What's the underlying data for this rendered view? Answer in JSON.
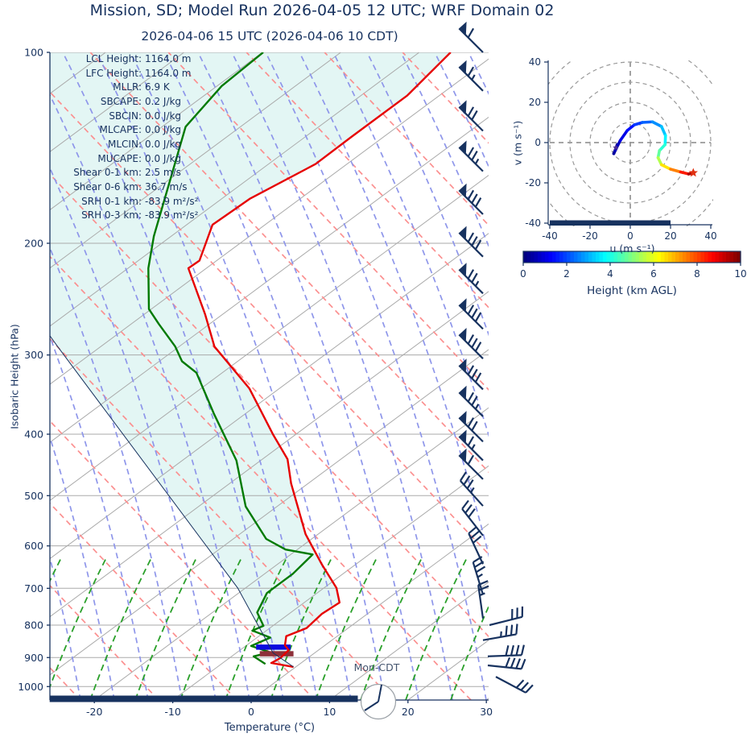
{
  "title": "Mission, SD; Model Run 2026-04-05 12 UTC; WRF Domain 02",
  "subtitle": "2026-04-06 15 UTC  (2026-04-06 10 CDT)",
  "colors": {
    "navy": "#17325f",
    "temperature_line": "#e60000",
    "dewpoint_line": "#007a00",
    "shade_fill": "#e3f6f4",
    "dry_adiabat": "#fb8f8f",
    "moist_adiabat": "#8e96ea",
    "mixing_ratio": "#2aa02a",
    "grid_gray": "#aaaaaa",
    "blue_marker_bar": "#0a0adf",
    "maroon_marker_bar": "#8e3039",
    "hodo_grid": "#999999",
    "clock_border": "#9aa0a6"
  },
  "skewt": {
    "ylabel": "Isobaric Height (hPa)",
    "xlabel": "Temperature (°C)",
    "surface_label": "Mon-CDT",
    "pressure_ticks": [
      100,
      200,
      300,
      400,
      500,
      600,
      700,
      800,
      900,
      1000
    ],
    "temp_ticks": [
      -20,
      -10,
      0,
      10,
      20,
      30
    ],
    "stats": [
      {
        "label": "LCL Height",
        "value": "1164.0 m"
      },
      {
        "label": "LFC Height",
        "value": "1164.0 m"
      },
      {
        "label": "MLLR",
        "value": "6.9 K"
      },
      {
        "label": "SBCAPE",
        "value": "0.2 J/kg"
      },
      {
        "label": "SBCIN",
        "value": "0.0 J/kg"
      },
      {
        "label": "MLCAPE",
        "value": "0.0 J/kg"
      },
      {
        "label": "MLCIN",
        "value": "0.0 J/kg"
      },
      {
        "label": "MUCAPE",
        "value": "0.0 J/kg"
      },
      {
        "label": "Shear 0-1 km",
        "value": "2.5 m/s"
      },
      {
        "label": "Shear 0-6 km",
        "value": "36.7 m/s"
      },
      {
        "label": "SRH 0-1 km",
        "value": "-83.9 m²/s²"
      },
      {
        "label": "SRH 0-3 km",
        "value": "-83.9 m²/s²"
      }
    ]
  },
  "hodograph": {
    "xlabel": "u (m s⁻¹)",
    "ylabel": "v (m s⁻¹)",
    "x_ticks": [
      -40,
      -20,
      0,
      20,
      40
    ],
    "y_ticks": [
      40,
      20,
      0,
      -20,
      -40
    ],
    "rings": [
      10,
      20,
      30,
      40,
      50
    ]
  },
  "colorbar": {
    "label": "Height (km AGL)",
    "ticks": [
      0,
      2,
      4,
      6,
      8,
      10
    ],
    "colormap": "jet",
    "range_km": [
      0,
      10
    ]
  },
  "chart_data": [
    {
      "type": "skewt-sounding",
      "pressure_range_hPa": [
        100,
        1050
      ],
      "temp_axis_range_C": [
        -25.7,
        30.3
      ],
      "temperature_profile_p_T": [
        [
          100,
          -86.0
        ],
        [
          117,
          -84.1
        ],
        [
          136,
          -84.1
        ],
        [
          150,
          -84.0
        ],
        [
          170,
          -86.4
        ],
        [
          187,
          -86.7
        ],
        [
          213,
          -82.2
        ],
        [
          219,
          -82.3
        ],
        [
          259,
          -72.2
        ],
        [
          291,
          -65.5
        ],
        [
          339,
          -53.8
        ],
        [
          401,
          -42.8
        ],
        [
          438,
          -36.8
        ],
        [
          478,
          -32.2
        ],
        [
          575,
          -21.6
        ],
        [
          641,
          -14.4
        ],
        [
          699,
          -8.4
        ],
        [
          737,
          -5.5
        ],
        [
          768,
          -5.8
        ],
        [
          809,
          -5.3
        ],
        [
          833,
          -6.5
        ],
        [
          861,
          -5.1
        ],
        [
          876,
          -3.8
        ],
        [
          902,
          -3.5
        ],
        [
          918,
          -3.8
        ],
        [
          931,
          -0.3
        ]
      ],
      "dewpoint_profile_p_Td": [
        [
          100,
          -109.9
        ],
        [
          113,
          -109.4
        ],
        [
          131,
          -107.0
        ],
        [
          195,
          -92.2
        ],
        [
          219,
          -87.4
        ],
        [
          254,
          -80.3
        ],
        [
          268,
          -76.5
        ],
        [
          291,
          -70.5
        ],
        [
          307,
          -67.1
        ],
        [
          320,
          -63.3
        ],
        [
          372,
          -53.9
        ],
        [
          440,
          -43.1
        ],
        [
          520,
          -34.0
        ],
        [
          585,
          -25.8
        ],
        [
          608,
          -21.5
        ],
        [
          619,
          -17.2
        ],
        [
          664,
          -16.4
        ],
        [
          712,
          -16.4
        ],
        [
          764,
          -14.3
        ],
        [
          802,
          -11.2
        ],
        [
          816,
          -11.8
        ],
        [
          837,
          -8.3
        ],
        [
          863,
          -9.3
        ],
        [
          883,
          -5.8
        ],
        [
          896,
          -7.2
        ],
        [
          921,
          -4.4
        ]
      ],
      "parcel_line_p_T": [
        [
          931,
          -0.3
        ],
        [
          885,
          -5.3
        ],
        [
          699,
          -21.0
        ],
        [
          291,
          -85.5
        ],
        [
          280,
          -88.3
        ]
      ],
      "surface_marker_bars": [
        {
          "name": "blue-bar",
          "p": 866,
          "t_min": -8.5,
          "t_max": -4.1
        },
        {
          "name": "maroon-bar",
          "p": 887,
          "t_min": -6.9,
          "t_max": -2.6
        }
      ],
      "ground_bar_T": {
        "t_min": -25.7,
        "t_max": 13.6
      },
      "wind_barbs": [
        {
          "p": 100,
          "angle": 135,
          "flag": 1,
          "full": 1,
          "half": 0
        },
        {
          "p": 115,
          "angle": 135,
          "flag": 1,
          "full": 1,
          "half": 1
        },
        {
          "p": 133,
          "angle": 135,
          "flag": 1,
          "full": 2,
          "half": 0
        },
        {
          "p": 154,
          "angle": 135,
          "flag": 1,
          "full": 2,
          "half": 1
        },
        {
          "p": 180,
          "angle": 135,
          "flag": 1,
          "full": 3,
          "half": 0
        },
        {
          "p": 210,
          "angle": 135,
          "flag": 1,
          "full": 3,
          "half": 0
        },
        {
          "p": 240,
          "angle": 135,
          "flag": 1,
          "full": 2,
          "half": 1
        },
        {
          "p": 273,
          "angle": 135,
          "flag": 1,
          "full": 3,
          "half": 0
        },
        {
          "p": 304,
          "angle": 135,
          "flag": 1,
          "full": 3,
          "half": 0
        },
        {
          "p": 340,
          "angle": 135,
          "flag": 1,
          "full": 3,
          "half": 0
        },
        {
          "p": 375,
          "angle": 135,
          "flag": 1,
          "full": 2,
          "half": 1
        },
        {
          "p": 411,
          "angle": 135,
          "flag": 1,
          "full": 2,
          "half": 0
        },
        {
          "p": 440,
          "angle": 135,
          "flag": 1,
          "full": 1,
          "half": 1
        },
        {
          "p": 471,
          "angle": 135,
          "flag": 1,
          "full": 1,
          "half": 0
        },
        {
          "p": 519,
          "angle": 132,
          "flag": 0,
          "full": 3,
          "half": 1
        },
        {
          "p": 578,
          "angle": 128,
          "flag": 0,
          "full": 3,
          "half": 0
        },
        {
          "p": 641,
          "angle": 115,
          "flag": 0,
          "full": 3,
          "half": 0
        },
        {
          "p": 716,
          "angle": 107,
          "flag": 0,
          "full": 3,
          "half": 1
        },
        {
          "p": 781,
          "angle": 98,
          "flag": 0,
          "full": 2,
          "half": 1
        },
        {
          "p": 800,
          "angle": 14,
          "flag": 0,
          "full": 3,
          "half": 0,
          "x": 608,
          "side": -1
        },
        {
          "p": 845,
          "angle": 10,
          "flag": 0,
          "full": 3,
          "half": 1,
          "x": 600,
          "side": -1
        },
        {
          "p": 896,
          "angle": 2,
          "flag": 0,
          "full": 4,
          "half": 0,
          "x": 606,
          "side": -1
        },
        {
          "p": 926,
          "angle": -6,
          "flag": 0,
          "full": 4,
          "half": 0,
          "x": 606,
          "side": -1
        },
        {
          "p": 965,
          "angle": -28,
          "flag": 0,
          "full": 3,
          "half": 0,
          "x": 616,
          "side": -1
        }
      ]
    },
    {
      "type": "hodograph",
      "u_range": [
        -40,
        40
      ],
      "v_range": [
        -40,
        40
      ],
      "trace_u_v_heightkm": [
        [
          -6.5,
          -1,
          0
        ],
        [
          -8.2,
          -5.5,
          0.2
        ],
        [
          -7.5,
          -4,
          0.4
        ],
        [
          -5,
          1,
          0.8
        ],
        [
          -1.5,
          6,
          1.2
        ],
        [
          2,
          8.8,
          1.6
        ],
        [
          6,
          10,
          2
        ],
        [
          11,
          10.3,
          2.4
        ],
        [
          15.5,
          8,
          2.9
        ],
        [
          17.5,
          3.5,
          3.4
        ],
        [
          17.3,
          -1,
          3.9
        ],
        [
          14.5,
          -4,
          4.4
        ],
        [
          13.8,
          -7.5,
          5
        ],
        [
          15.5,
          -11,
          6
        ],
        [
          20,
          -13.2,
          7
        ],
        [
          25,
          -14.6,
          8
        ],
        [
          29,
          -15.6,
          9
        ],
        [
          31.3,
          -15,
          10
        ]
      ],
      "start_marker_uv": [
        -7.2,
        -2.5
      ],
      "end_marker_uv": [
        31.3,
        -15
      ],
      "ground_bar_u": {
        "u_min": -40,
        "u_max": 20,
        "v": -40
      }
    }
  ]
}
